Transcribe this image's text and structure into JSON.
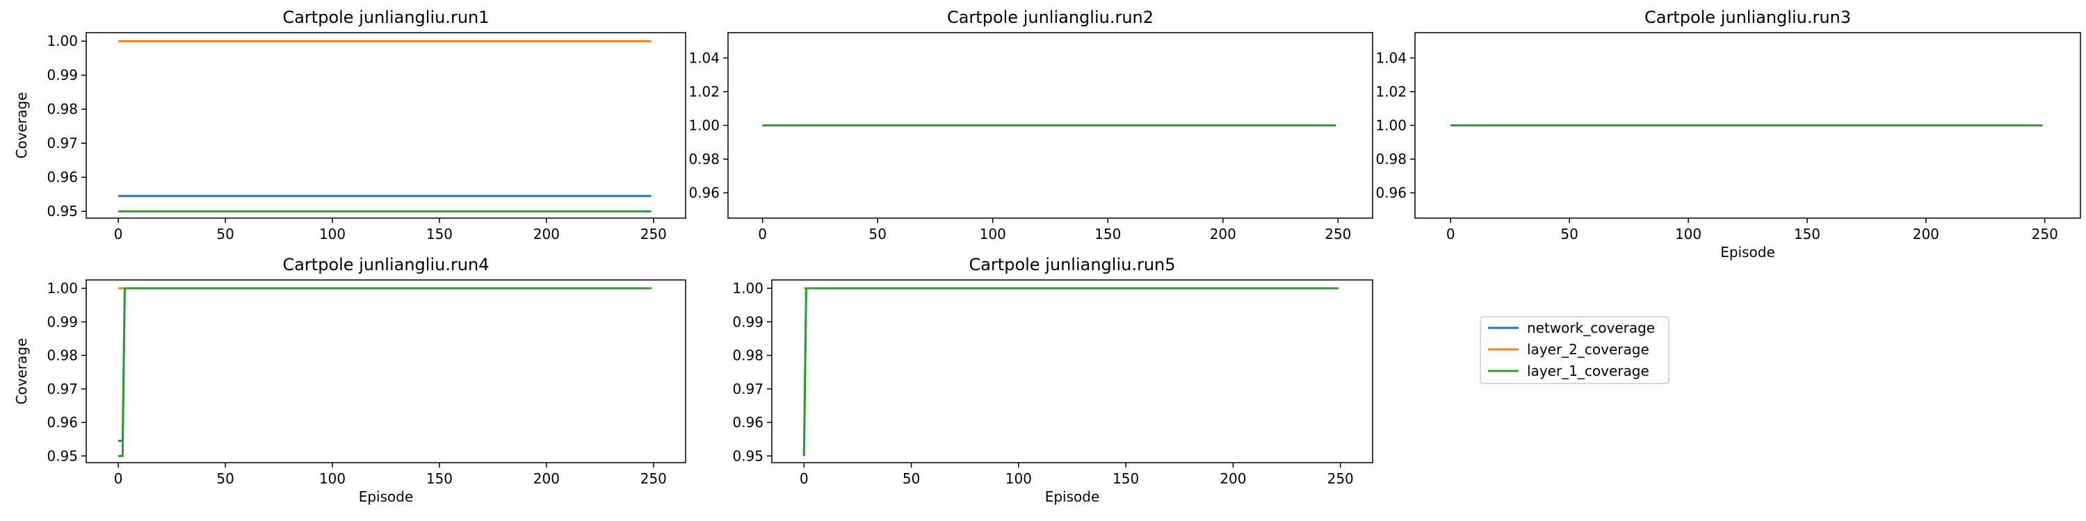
{
  "legend": {
    "entries": [
      {
        "label": "network_coverage",
        "color": "#1f77b4"
      },
      {
        "label": "layer_2_coverage",
        "color": "#ff7f0e"
      },
      {
        "label": "layer_1_coverage",
        "color": "#2ca02c"
      }
    ]
  },
  "chart_data": [
    {
      "type": "line",
      "title": "Cartpole junliangliu.run1",
      "xlabel": "",
      "ylabel": "Coverage",
      "xlim": [
        -15,
        265
      ],
      "ylim": [
        0.948,
        1.0025
      ],
      "xticks": [
        "0",
        "50",
        "100",
        "150",
        "200",
        "250"
      ],
      "yticks": [
        "0.95",
        "0.96",
        "0.97",
        "0.98",
        "0.99",
        "1.00"
      ],
      "series": [
        {
          "name": "network_coverage",
          "color": "#1f77b4",
          "points": [
            [
              0,
              0.9545
            ],
            [
              249,
              0.9545
            ]
          ]
        },
        {
          "name": "layer_2_coverage",
          "color": "#ff7f0e",
          "points": [
            [
              0,
              1.0
            ],
            [
              249,
              1.0
            ]
          ]
        },
        {
          "name": "layer_1_coverage",
          "color": "#2ca02c",
          "points": [
            [
              0,
              0.95
            ],
            [
              249,
              0.95
            ]
          ]
        }
      ]
    },
    {
      "type": "line",
      "title": "Cartpole junliangliu.run2",
      "xlabel": "",
      "ylabel": "",
      "xlim": [
        -15,
        265
      ],
      "ylim": [
        0.945,
        1.055
      ],
      "xticks": [
        "0",
        "50",
        "100",
        "150",
        "200",
        "250"
      ],
      "yticks": [
        "0.96",
        "0.98",
        "1.00",
        "1.02",
        "1.04"
      ],
      "series": [
        {
          "name": "network_coverage",
          "color": "#1f77b4",
          "points": [
            [
              0,
              1.0
            ],
            [
              249,
              1.0
            ]
          ]
        },
        {
          "name": "layer_2_coverage",
          "color": "#ff7f0e",
          "points": [
            [
              0,
              1.0
            ],
            [
              249,
              1.0
            ]
          ]
        },
        {
          "name": "layer_1_coverage",
          "color": "#2ca02c",
          "points": [
            [
              0,
              1.0
            ],
            [
              249,
              1.0
            ]
          ]
        }
      ]
    },
    {
      "type": "line",
      "title": "Cartpole junliangliu.run3",
      "xlabel": "Episode",
      "ylabel": "",
      "xlim": [
        -15,
        265
      ],
      "ylim": [
        0.945,
        1.055
      ],
      "xticks": [
        "0",
        "50",
        "100",
        "150",
        "200",
        "250"
      ],
      "yticks": [
        "0.96",
        "0.98",
        "1.00",
        "1.02",
        "1.04"
      ],
      "series": [
        {
          "name": "network_coverage",
          "color": "#1f77b4",
          "points": [
            [
              0,
              1.0
            ],
            [
              249,
              1.0
            ]
          ]
        },
        {
          "name": "layer_2_coverage",
          "color": "#ff7f0e",
          "points": [
            [
              0,
              1.0
            ],
            [
              249,
              1.0
            ]
          ]
        },
        {
          "name": "layer_1_coverage",
          "color": "#2ca02c",
          "points": [
            [
              0,
              1.0
            ],
            [
              249,
              1.0
            ]
          ]
        }
      ]
    },
    {
      "type": "line",
      "title": "Cartpole junliangliu.run4",
      "xlabel": "Episode",
      "ylabel": "Coverage",
      "xlim": [
        -15,
        265
      ],
      "ylim": [
        0.948,
        1.0025
      ],
      "xticks": [
        "0",
        "50",
        "100",
        "150",
        "200",
        "250"
      ],
      "yticks": [
        "0.95",
        "0.96",
        "0.97",
        "0.98",
        "0.99",
        "1.00"
      ],
      "series": [
        {
          "name": "network_coverage",
          "color": "#1f77b4",
          "points": [
            [
              0,
              0.9545
            ],
            [
              2,
              0.9545
            ],
            [
              3,
              1.0
            ],
            [
              249,
              1.0
            ]
          ]
        },
        {
          "name": "layer_2_coverage",
          "color": "#ff7f0e",
          "points": [
            [
              0,
              1.0
            ],
            [
              249,
              1.0
            ]
          ]
        },
        {
          "name": "layer_1_coverage",
          "color": "#2ca02c",
          "points": [
            [
              0,
              0.95
            ],
            [
              2,
              0.95
            ],
            [
              3,
              1.0
            ],
            [
              249,
              1.0
            ]
          ]
        }
      ]
    },
    {
      "type": "line",
      "title": "Cartpole junliangliu.run5",
      "xlabel": "Episode",
      "ylabel": "",
      "xlim": [
        -15,
        265
      ],
      "ylim": [
        0.948,
        1.0025
      ],
      "xticks": [
        "0",
        "50",
        "100",
        "150",
        "200",
        "250"
      ],
      "yticks": [
        "0.95",
        "0.96",
        "0.97",
        "0.98",
        "0.99",
        "1.00"
      ],
      "series": [
        {
          "name": "network_coverage",
          "color": "#1f77b4",
          "points": [
            [
              0,
              0.95
            ],
            [
              1,
              1.0
            ],
            [
              249,
              1.0
            ]
          ]
        },
        {
          "name": "layer_2_coverage",
          "color": "#ff7f0e",
          "points": [
            [
              0,
              1.0
            ],
            [
              249,
              1.0
            ]
          ]
        },
        {
          "name": "layer_1_coverage",
          "color": "#2ca02c",
          "points": [
            [
              0,
              0.95
            ],
            [
              1,
              1.0
            ],
            [
              249,
              1.0
            ]
          ]
        }
      ]
    }
  ]
}
